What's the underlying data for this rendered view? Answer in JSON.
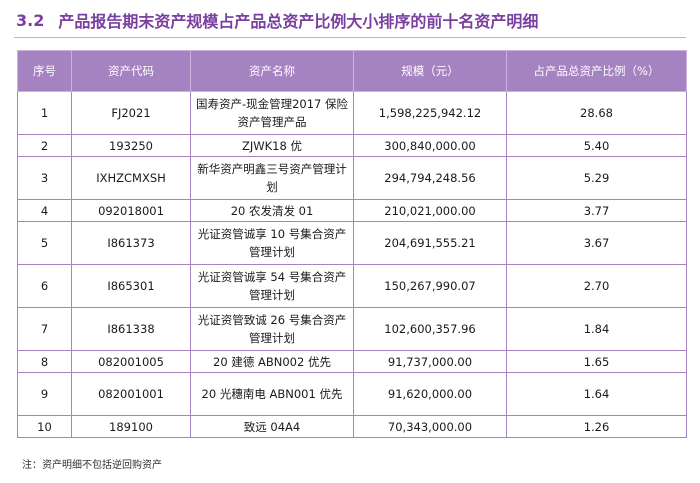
{
  "heading": {
    "number": "3.2",
    "title": "产品报告期末资产规模占产品总资产比例大小排序的前十名资产明细"
  },
  "table": {
    "columns": [
      "序号",
      "资产代码",
      "资产名称",
      "规模（元）",
      "占产品总资产比例（%）"
    ],
    "rows": [
      {
        "seq": "1",
        "code": "FJ2021",
        "name": "国寿资产-现金管理2017 保险资产管理产品",
        "amount": "1,598,225,942.12",
        "ratio": "28.68"
      },
      {
        "seq": "2",
        "code": "193250",
        "name": "ZJWK18 优",
        "amount": "300,840,000.00",
        "ratio": "5.40"
      },
      {
        "seq": "3",
        "code": "IXHZCMXSH",
        "name": "新华资产明鑫三号资产管理计划",
        "amount": "294,794,248.56",
        "ratio": "5.29"
      },
      {
        "seq": "4",
        "code": "092018001",
        "name": "20 农发清发 01",
        "amount": "210,021,000.00",
        "ratio": "3.77"
      },
      {
        "seq": "5",
        "code": "I861373",
        "name": "光证资管诚享 10 号集合资产管理计划",
        "amount": "204,691,555.21",
        "ratio": "3.67"
      },
      {
        "seq": "6",
        "code": "I865301",
        "name": "光证资管诚享 54 号集合资产管理计划",
        "amount": "150,267,990.07",
        "ratio": "2.70"
      },
      {
        "seq": "7",
        "code": "I861338",
        "name": "光证资管致诚 26 号集合资产管理计划",
        "amount": "102,600,357.96",
        "ratio": "1.84"
      },
      {
        "seq": "8",
        "code": "082001005",
        "name": "20 建德 ABN002 优先",
        "amount": "91,737,000.00",
        "ratio": "1.65"
      },
      {
        "seq": "9",
        "code": "082001001",
        "name": "20 光穗南电 ABN001 优先",
        "amount": "91,620,000.00",
        "ratio": "1.64"
      },
      {
        "seq": "10",
        "code": "189100",
        "name": "致远 04A4",
        "amount": "70,343,000.00",
        "ratio": "1.26"
      }
    ]
  },
  "footnote": "注：资产明细不包括逆回购资产",
  "colors": {
    "heading": "#7a3fa0",
    "header_bg": "#a582c0",
    "border": "#a582c0"
  }
}
